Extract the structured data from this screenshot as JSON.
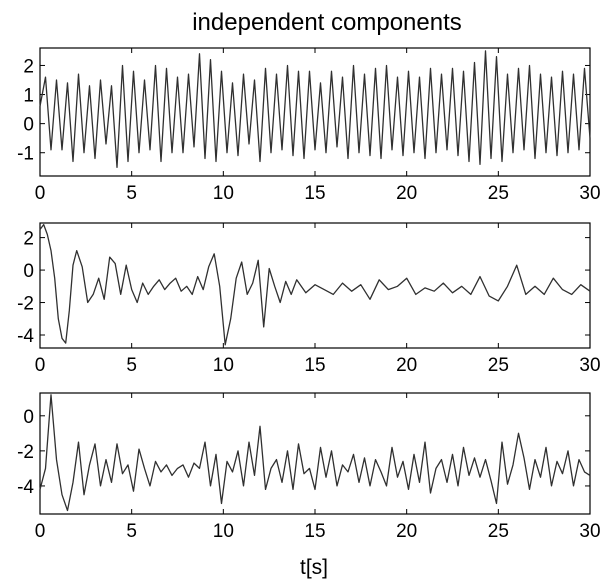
{
  "figure": {
    "title": "independent components",
    "xlabel": "t[s]"
  },
  "colors": {
    "trace": "#303030",
    "axes": "#000000",
    "background": "#ffffff"
  },
  "chart_data": [
    {
      "type": "line",
      "title": "independent components",
      "xlabel": "",
      "ylabel": "",
      "xlim": [
        0,
        30
      ],
      "ylim": [
        -1.8,
        2.6
      ],
      "xticks": [
        0,
        5,
        10,
        15,
        20,
        25,
        30
      ],
      "yticks": [
        -1,
        0,
        1,
        2
      ],
      "grid": false,
      "series": [
        {
          "x": [
            0,
            0.3,
            0.6,
            0.9,
            1.2,
            1.5,
            1.8,
            2.1,
            2.4,
            2.7,
            3.0,
            3.3,
            3.6,
            3.9,
            4.2,
            4.5,
            4.8,
            5.1,
            5.4,
            5.7,
            6.0,
            6.3,
            6.6,
            6.9,
            7.2,
            7.5,
            7.8,
            8.1,
            8.4,
            8.7,
            9.0,
            9.3,
            9.6,
            9.9,
            10.2,
            10.5,
            10.8,
            11.1,
            11.4,
            11.7,
            12.0,
            12.3,
            12.6,
            12.9,
            13.2,
            13.5,
            13.8,
            14.1,
            14.4,
            14.7,
            15.0,
            15.3,
            15.6,
            15.9,
            16.2,
            16.5,
            16.8,
            17.1,
            17.4,
            17.7,
            18.0,
            18.3,
            18.6,
            18.9,
            19.2,
            19.5,
            19.8,
            20.1,
            20.4,
            20.7,
            21.0,
            21.3,
            21.6,
            21.9,
            22.2,
            22.5,
            22.8,
            23.1,
            23.4,
            23.7,
            24.0,
            24.3,
            24.6,
            24.9,
            25.2,
            25.5,
            25.8,
            26.1,
            26.4,
            26.7,
            27.0,
            27.3,
            27.6,
            27.9,
            28.2,
            28.5,
            28.8,
            29.1,
            29.4,
            29.7,
            30.0
          ],
          "values": [
            0.6,
            1.6,
            -0.9,
            1.5,
            -0.9,
            1.4,
            -1.3,
            1.7,
            -1.0,
            1.3,
            -1.2,
            1.5,
            -0.7,
            1.3,
            -1.5,
            2.0,
            -1.3,
            1.8,
            -1.0,
            1.5,
            -0.9,
            2.0,
            -1.3,
            1.9,
            -1.0,
            1.6,
            -1.0,
            1.7,
            -0.8,
            2.4,
            -1.2,
            2.2,
            -1.3,
            1.8,
            -1.0,
            1.4,
            -1.1,
            1.7,
            -0.7,
            1.5,
            -1.3,
            1.9,
            -1.0,
            1.7,
            -0.9,
            2.0,
            -1.1,
            1.8,
            -1.2,
            1.8,
            -0.9,
            1.4,
            -1.0,
            1.8,
            -0.8,
            1.6,
            -1.2,
            2.0,
            -1.0,
            1.7,
            -1.1,
            1.9,
            -1.2,
            2.0,
            -0.9,
            1.6,
            -1.1,
            1.8,
            -1.0,
            1.6,
            -1.2,
            1.9,
            -1.0,
            1.7,
            -0.9,
            1.9,
            -1.1,
            1.8,
            -1.3,
            2.1,
            -1.4,
            2.5,
            -1.2,
            2.3,
            -1.3,
            1.7,
            -1.0,
            1.9,
            -0.9,
            2.0,
            -1.2,
            1.7,
            -1.0,
            1.6,
            -1.1,
            1.8,
            -1.0,
            1.7,
            -0.9,
            1.9,
            -0.5
          ]
        }
      ]
    },
    {
      "type": "line",
      "xlabel": "",
      "ylabel": "",
      "xlim": [
        0,
        30
      ],
      "ylim": [
        -4.8,
        2.9
      ],
      "xticks": [
        0,
        5,
        10,
        15,
        20,
        25,
        30
      ],
      "yticks": [
        -4,
        -2,
        0,
        2
      ],
      "grid": false,
      "series": [
        {
          "x": [
            0,
            0.2,
            0.4,
            0.6,
            0.8,
            1.0,
            1.2,
            1.4,
            1.6,
            1.8,
            2.0,
            2.3,
            2.6,
            2.9,
            3.2,
            3.5,
            3.8,
            4.1,
            4.4,
            4.7,
            5.0,
            5.3,
            5.6,
            5.9,
            6.2,
            6.5,
            6.8,
            7.1,
            7.4,
            7.7,
            8.0,
            8.3,
            8.6,
            8.9,
            9.2,
            9.5,
            9.8,
            10.1,
            10.4,
            10.7,
            11.0,
            11.3,
            11.6,
            11.9,
            12.2,
            12.5,
            12.8,
            13.1,
            13.4,
            13.7,
            14.0,
            14.5,
            15.0,
            15.5,
            16.0,
            16.5,
            17.0,
            17.5,
            18.0,
            18.5,
            19.0,
            19.5,
            20.0,
            20.5,
            21.0,
            21.5,
            22.0,
            22.5,
            23.0,
            23.5,
            24.0,
            24.5,
            25.0,
            25.5,
            26.0,
            26.5,
            27.0,
            27.5,
            28.0,
            28.5,
            29.0,
            29.5,
            30.0
          ],
          "values": [
            2.5,
            2.8,
            2.2,
            1.2,
            -0.5,
            -3.0,
            -4.2,
            -4.5,
            -2.5,
            0.3,
            1.2,
            0.2,
            -2.0,
            -1.5,
            -0.5,
            -1.8,
            0.8,
            0.4,
            -1.5,
            0.3,
            -1.2,
            -2.0,
            -0.8,
            -1.5,
            -1.0,
            -0.6,
            -1.2,
            -0.8,
            -0.5,
            -1.3,
            -1.0,
            -1.5,
            -0.4,
            -1.2,
            0.2,
            1.0,
            -1.0,
            -4.6,
            -3.0,
            -0.5,
            0.5,
            -1.5,
            -0.8,
            0.6,
            -3.5,
            0.1,
            -1.0,
            -2.0,
            -0.7,
            -1.5,
            -0.6,
            -1.4,
            -0.9,
            -1.2,
            -1.5,
            -0.8,
            -1.3,
            -0.9,
            -1.8,
            -0.6,
            -1.2,
            -1.0,
            -0.5,
            -1.5,
            -1.1,
            -1.3,
            -0.8,
            -1.4,
            -1.0,
            -1.5,
            -0.4,
            -1.6,
            -1.9,
            -1.0,
            0.3,
            -1.5,
            -1.0,
            -1.5,
            -0.5,
            -1.2,
            -1.5,
            -0.9,
            -1.3
          ]
        }
      ]
    },
    {
      "type": "line",
      "xlabel": "t[s]",
      "ylabel": "",
      "xlim": [
        0,
        30
      ],
      "ylim": [
        -5.6,
        1.3
      ],
      "xticks": [
        0,
        5,
        10,
        15,
        20,
        25,
        30
      ],
      "yticks": [
        -4,
        -2,
        0
      ],
      "grid": false,
      "series": [
        {
          "x": [
            0,
            0.3,
            0.6,
            0.9,
            1.2,
            1.5,
            1.8,
            2.1,
            2.4,
            2.7,
            3.0,
            3.3,
            3.6,
            3.9,
            4.2,
            4.5,
            4.8,
            5.1,
            5.4,
            5.7,
            6.0,
            6.3,
            6.6,
            6.9,
            7.2,
            7.5,
            7.8,
            8.1,
            8.4,
            8.7,
            9.0,
            9.3,
            9.6,
            9.9,
            10.2,
            10.5,
            10.8,
            11.1,
            11.4,
            11.7,
            12.0,
            12.3,
            12.6,
            12.9,
            13.2,
            13.5,
            13.8,
            14.1,
            14.4,
            14.7,
            15.0,
            15.3,
            15.6,
            15.9,
            16.2,
            16.5,
            16.8,
            17.1,
            17.4,
            17.7,
            18.0,
            18.3,
            18.6,
            18.9,
            19.2,
            19.5,
            19.8,
            20.1,
            20.4,
            20.7,
            21.0,
            21.3,
            21.6,
            21.9,
            22.2,
            22.5,
            22.8,
            23.1,
            23.4,
            23.7,
            24.0,
            24.3,
            24.6,
            24.9,
            25.2,
            25.5,
            25.8,
            26.1,
            26.4,
            26.7,
            27.0,
            27.3,
            27.6,
            27.9,
            28.2,
            28.5,
            28.8,
            29.1,
            29.4,
            29.7,
            30.0
          ],
          "values": [
            -4.2,
            -3.0,
            1.2,
            -2.5,
            -4.5,
            -5.4,
            -3.8,
            -1.5,
            -4.5,
            -2.8,
            -1.6,
            -4.0,
            -2.5,
            -3.8,
            -1.6,
            -3.3,
            -2.8,
            -4.3,
            -1.9,
            -3.0,
            -4.0,
            -2.6,
            -3.2,
            -2.8,
            -3.4,
            -3.0,
            -2.8,
            -3.5,
            -2.7,
            -3.0,
            -1.5,
            -4.0,
            -2.2,
            -5.0,
            -2.6,
            -3.2,
            -2.0,
            -4.0,
            -1.5,
            -3.4,
            -0.6,
            -4.2,
            -3.0,
            -2.5,
            -3.8,
            -2.0,
            -4.2,
            -1.6,
            -3.3,
            -3.0,
            -4.2,
            -1.8,
            -3.5,
            -2.0,
            -4.0,
            -2.8,
            -3.2,
            -2.2,
            -3.8,
            -2.4,
            -4.0,
            -2.5,
            -3.2,
            -4.0,
            -1.8,
            -3.5,
            -2.6,
            -4.2,
            -2.2,
            -3.8,
            -1.5,
            -4.4,
            -3.0,
            -2.5,
            -3.8,
            -2.2,
            -4.0,
            -1.8,
            -3.4,
            -2.4,
            -3.5,
            -2.5,
            -3.7,
            -5.0,
            -1.5,
            -3.9,
            -2.8,
            -1.0,
            -2.4,
            -4.2,
            -2.5,
            -3.5,
            -1.8,
            -4.0,
            -2.6,
            -3.3,
            -2.0,
            -4.0,
            -2.5,
            -3.2,
            -3.4
          ]
        }
      ]
    }
  ]
}
